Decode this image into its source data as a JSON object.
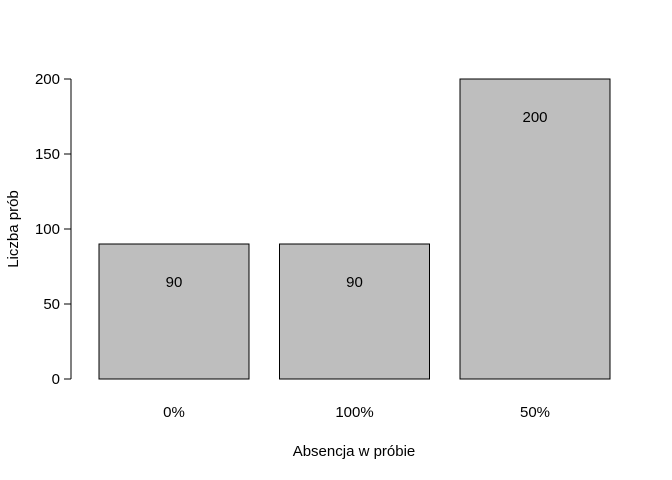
{
  "chart_data": {
    "type": "bar",
    "title": "",
    "xlabel": "Absencja w próbie",
    "ylabel": "Liczba prób",
    "categories": [
      "0%",
      "100%",
      "50%"
    ],
    "values": [
      90,
      90,
      200
    ],
    "value_labels": [
      "90",
      "90",
      "200"
    ],
    "yticks": [
      0,
      50,
      100,
      150,
      200
    ],
    "ytick_labels": [
      "0",
      "50",
      "100",
      "150",
      "200"
    ],
    "ylim": [
      0,
      200
    ],
    "grid": false,
    "legend": "none",
    "bar_color": "#bebebe",
    "bar_border_color": "#000000"
  }
}
